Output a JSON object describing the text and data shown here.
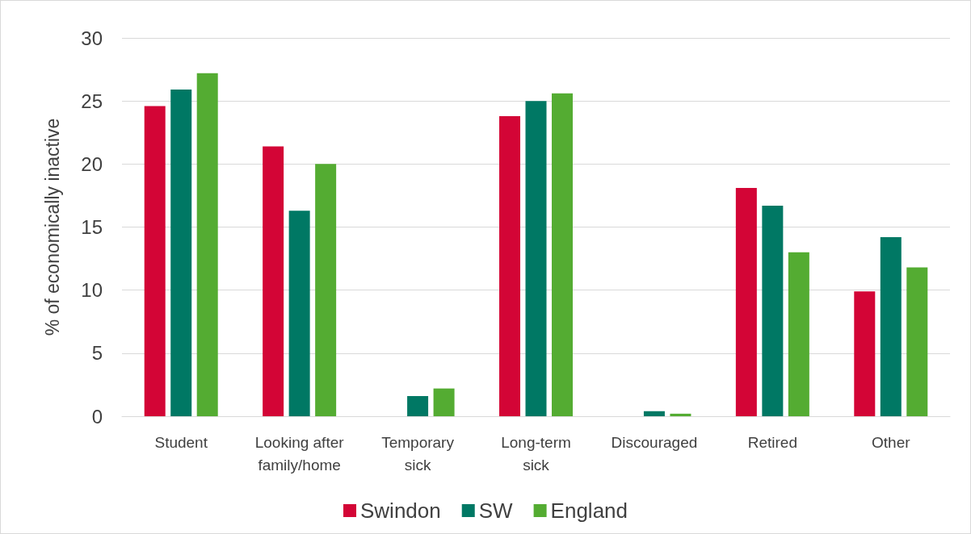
{
  "chart_data": {
    "type": "bar",
    "ylabel": "% of economically inactive",
    "categories": [
      "Student",
      "Looking after\nfamily/home",
      "Temporary\nsick",
      "Long-term\nsick",
      "Discouraged",
      "Retired",
      "Other"
    ],
    "series": [
      {
        "name": "Swindon",
        "color": "#d30536",
        "values": [
          24.6,
          21.4,
          null,
          23.8,
          null,
          18.1,
          9.9
        ]
      },
      {
        "name": "SW",
        "color": "#007864",
        "values": [
          25.9,
          16.3,
          1.6,
          25.0,
          0.4,
          16.7,
          14.2
        ]
      },
      {
        "name": "England",
        "color": "#54ac32",
        "values": [
          27.2,
          20.0,
          2.2,
          25.6,
          0.2,
          13.0,
          11.8
        ]
      }
    ],
    "ylim": [
      0,
      30
    ],
    "yticks": [
      0,
      5,
      10,
      15,
      20,
      25,
      30
    ],
    "grid": "y",
    "legend": "bottom"
  }
}
